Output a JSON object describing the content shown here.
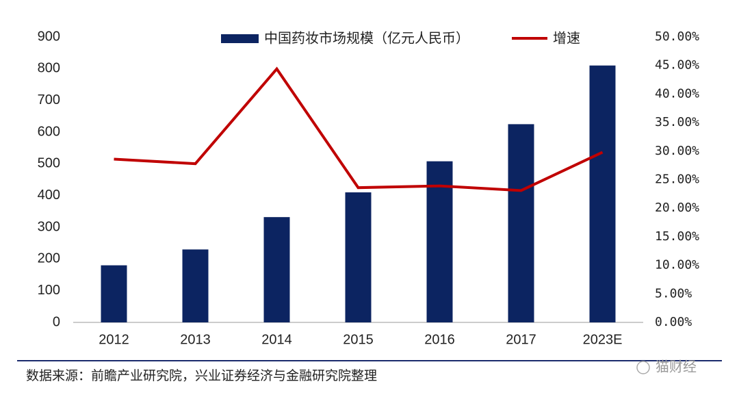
{
  "chart_data": {
    "type": "combo",
    "categories": [
      "2012",
      "2013",
      "2014",
      "2015",
      "2016",
      "2017",
      "2023E"
    ],
    "series": [
      {
        "name": "中国药妆市场规模（亿元人民币）",
        "type": "bar",
        "color": "#0c2461",
        "values": [
          180,
          230,
          332,
          410,
          508,
          625,
          810
        ]
      },
      {
        "name": "增速",
        "type": "line",
        "color": "#c00000",
        "axis": "y2",
        "values": [
          28.6,
          27.8,
          44.4,
          23.6,
          23.9,
          23.1,
          29.8
        ]
      }
    ],
    "ylim": [
      0,
      900
    ],
    "yticks": [
      0,
      100,
      200,
      300,
      400,
      500,
      600,
      700,
      800,
      900
    ],
    "y2lim": [
      0,
      50
    ],
    "y2ticks": [
      {
        "value": 0,
        "label": "0.00%"
      },
      {
        "value": 5,
        "label": "5.00%"
      },
      {
        "value": 10,
        "label": "10.00%"
      },
      {
        "value": 15,
        "label": "15.00%"
      },
      {
        "value": 20,
        "label": "20.00%"
      },
      {
        "value": 25,
        "label": "25.00%"
      },
      {
        "value": 30,
        "label": "30.00%"
      },
      {
        "value": 35,
        "label": "35.00%"
      },
      {
        "value": 40,
        "label": "40.00%"
      },
      {
        "value": 45,
        "label": "45.00%"
      },
      {
        "value": 50,
        "label": "50.00%"
      }
    ],
    "grid": false,
    "legend": "top",
    "source": "数据来源：前瞻产业研究院，兴业证券经济与金融研究院整理",
    "watermark": "猫财经"
  }
}
